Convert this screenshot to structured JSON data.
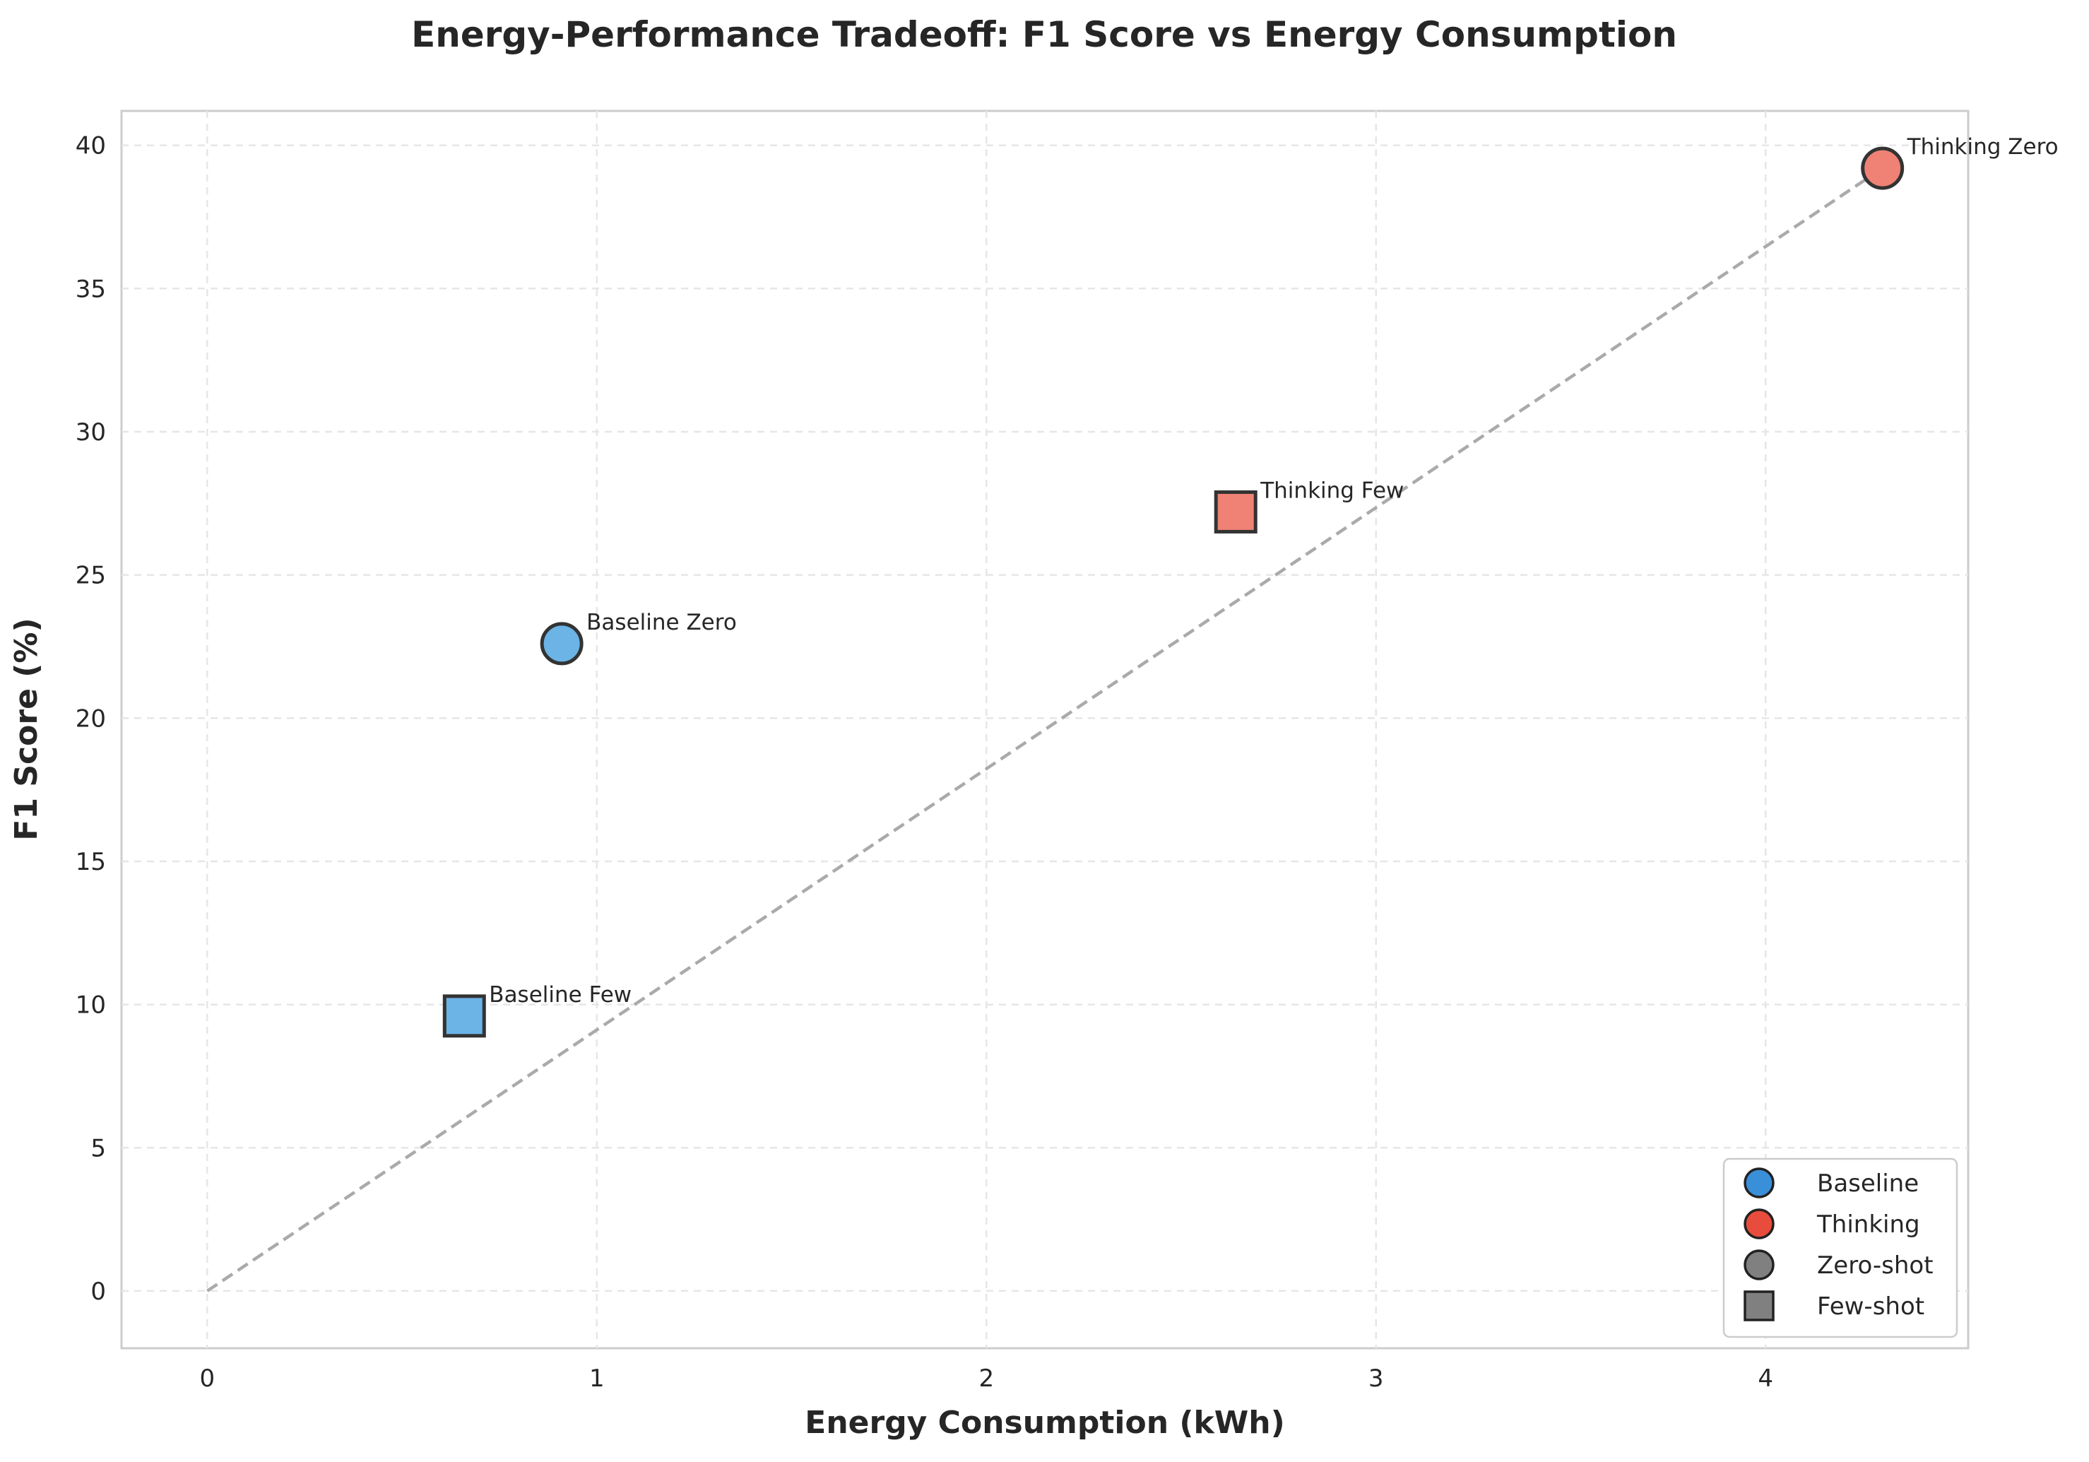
{
  "chart_data": {
    "type": "scatter",
    "title": "Energy-Performance Tradeoff: F1 Score vs Energy Consumption",
    "xlabel": "Energy Consumption (kWh)",
    "ylabel": "F1 Score (%)",
    "xlim": [
      -0.22,
      4.52
    ],
    "ylim": [
      -2,
      41.2
    ],
    "xticks": [
      0,
      1,
      2,
      3,
      4
    ],
    "yticks": [
      0,
      5,
      10,
      15,
      20,
      25,
      30,
      35,
      40
    ],
    "grid": true,
    "legend_position": "lower-right",
    "points": [
      {
        "label": "Baseline Zero",
        "model": "Baseline",
        "shot": "Zero-shot",
        "x": 0.91,
        "y": 22.6,
        "marker": "circle",
        "color": "#6cb3e6"
      },
      {
        "label": "Baseline Few",
        "model": "Baseline",
        "shot": "Few-shot",
        "x": 0.66,
        "y": 9.6,
        "marker": "square",
        "color": "#6cb3e6"
      },
      {
        "label": "Thinking Few",
        "model": "Thinking",
        "shot": "Few-shot",
        "x": 2.64,
        "y": 27.2,
        "marker": "square",
        "color": "#ef8275"
      },
      {
        "label": "Thinking Zero",
        "model": "Thinking",
        "shot": "Zero-shot",
        "x": 4.3,
        "y": 39.2,
        "marker": "circle",
        "color": "#ef8275"
      }
    ],
    "trend_line": {
      "style": "dashed",
      "color": "#aaaaaa",
      "from": [
        0,
        0
      ],
      "to": [
        4.3,
        39.2
      ]
    },
    "legend": [
      {
        "label": "Baseline",
        "marker": "circle",
        "color": "#3a8fd9"
      },
      {
        "label": "Thinking",
        "marker": "circle",
        "color": "#e74c3c"
      },
      {
        "label": "Zero-shot",
        "marker": "circle",
        "color": "#808080"
      },
      {
        "label": "Few-shot",
        "marker": "square",
        "color": "#808080"
      }
    ]
  }
}
